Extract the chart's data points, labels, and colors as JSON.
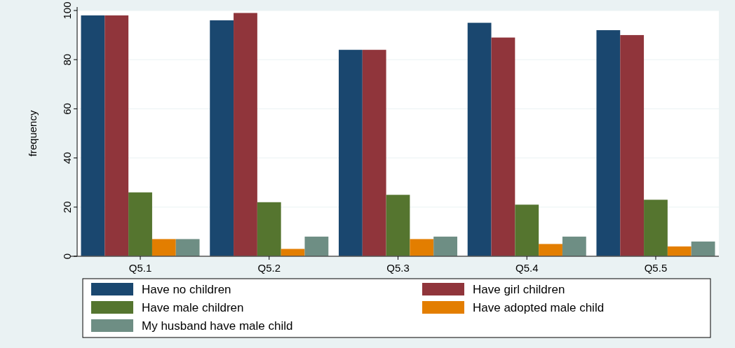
{
  "chart_data": {
    "type": "bar",
    "ylabel": "frequency",
    "categories": [
      "Q5.1",
      "Q5.2",
      "Q5.3",
      "Q5.4",
      "Q5.5"
    ],
    "series": [
      {
        "name": "Have no children",
        "color": "#1a476f",
        "values": [
          98,
          96,
          84,
          95,
          92
        ]
      },
      {
        "name": "Have girl children",
        "color": "#90353b",
        "values": [
          98,
          99,
          84,
          89,
          90
        ]
      },
      {
        "name": "Have male children",
        "color": "#55752f",
        "values": [
          26,
          22,
          25,
          21,
          23
        ]
      },
      {
        "name": "Have adopted male child",
        "color": "#e37e00",
        "values": [
          7,
          3,
          7,
          5,
          4
        ]
      },
      {
        "name": "My husband have male child",
        "color": "#6e8e84",
        "values": [
          7,
          8,
          8,
          8,
          6
        ]
      }
    ],
    "ylim": [
      0,
      100
    ],
    "yticks": [
      0,
      20,
      40,
      60,
      80,
      100
    ],
    "grid": "y",
    "legend": "bottom"
  }
}
